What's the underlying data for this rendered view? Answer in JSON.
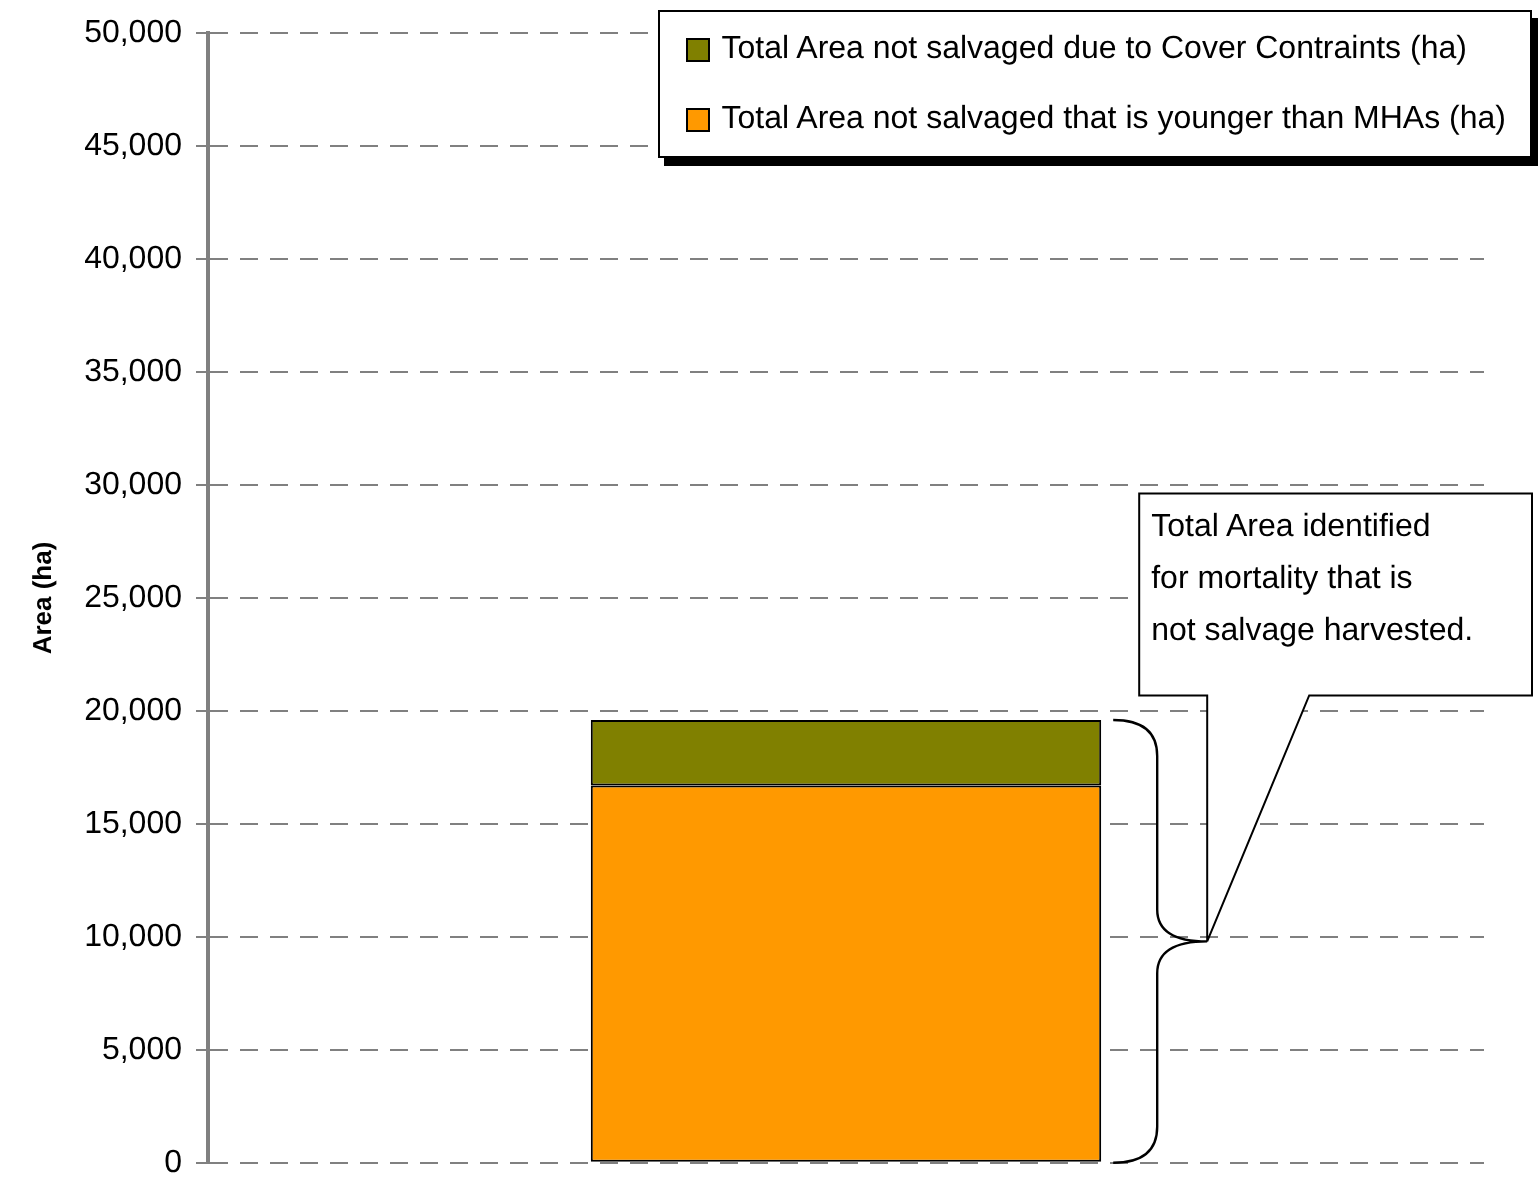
{
  "chart_data": {
    "type": "bar",
    "ylabel": "Area (ha)",
    "categories": [
      null
    ],
    "stacked": true,
    "series": [
      {
        "name": "Total Area not salvaged that is younger than MHAs (ha)",
        "color": "#ff9900",
        "values": [
          16700
        ]
      },
      {
        "name": "Total Area not salvaged due to Cover Contraints (ha)",
        "color": "#808000",
        "values": [
          2900
        ]
      }
    ],
    "ylim": [
      0,
      50000
    ],
    "yticks": [
      0,
      {
        "value": 5000,
        "label": "5,000"
      },
      {
        "value": 10000,
        "label": "10,000"
      },
      {
        "value": 15000,
        "label": "15,000"
      },
      {
        "value": 20000,
        "label": "20,000"
      },
      {
        "value": 25000,
        "label": "25,000"
      },
      {
        "value": 30000,
        "label": "30,000"
      },
      {
        "value": 35000,
        "label": "35,000"
      },
      {
        "value": 40000,
        "label": "40,000"
      },
      {
        "value": 45000,
        "label": "45,000"
      },
      {
        "value": 50000,
        "label": "50,000"
      }
    ],
    "grid": "y",
    "tick_labels": "y",
    "legend": "top right",
    "annotations": [
      "Total Area identified\nfor mortality that is\nnot salvage harvested."
    ]
  }
}
